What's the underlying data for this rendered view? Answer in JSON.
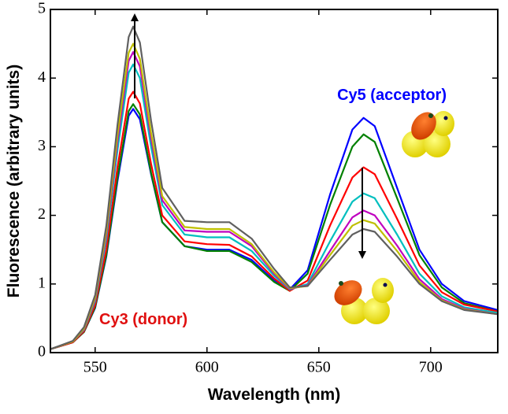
{
  "chart_data": {
    "type": "line",
    "xlabel": "Wavelength (nm)",
    "ylabel": "Fluorescence (arbitrary units)",
    "annotations": [
      {
        "text": "Cy5 (acceptor)",
        "color": "#0000ff"
      },
      {
        "text": "Cy3 (donor)",
        "color": "#e01010"
      }
    ],
    "xlim": [
      530,
      730
    ],
    "xticks": [
      550,
      600,
      650,
      700
    ],
    "ylim": [
      0,
      5
    ],
    "yticks": [
      0,
      1,
      2,
      3,
      4,
      5
    ],
    "x": [
      530,
      540,
      545,
      550,
      555,
      560,
      565,
      567,
      570,
      575,
      580,
      590,
      600,
      610,
      620,
      630,
      637,
      645,
      655,
      665,
      670,
      675,
      685,
      695,
      705,
      715,
      730
    ],
    "series": [
      {
        "color": "#0000ff",
        "values": [
          0.05,
          0.15,
          0.3,
          0.65,
          1.4,
          2.5,
          3.45,
          3.55,
          3.4,
          2.6,
          1.9,
          1.55,
          1.5,
          1.5,
          1.35,
          1.05,
          0.92,
          1.2,
          2.3,
          3.25,
          3.42,
          3.3,
          2.4,
          1.5,
          1.0,
          0.75,
          0.62
        ]
      },
      {
        "color": "#008000",
        "values": [
          0.05,
          0.15,
          0.3,
          0.66,
          1.42,
          2.55,
          3.52,
          3.62,
          3.47,
          2.62,
          1.9,
          1.55,
          1.48,
          1.48,
          1.32,
          1.03,
          0.9,
          1.15,
          2.15,
          3.0,
          3.18,
          3.07,
          2.25,
          1.42,
          0.95,
          0.72,
          0.6
        ]
      },
      {
        "color": "#ff0000",
        "values": [
          0.05,
          0.15,
          0.31,
          0.69,
          1.5,
          2.7,
          3.7,
          3.8,
          3.63,
          2.75,
          2.0,
          1.62,
          1.58,
          1.57,
          1.4,
          1.08,
          0.9,
          1.05,
          1.85,
          2.55,
          2.7,
          2.6,
          1.95,
          1.27,
          0.88,
          0.7,
          0.6
        ]
      },
      {
        "color": "#00bfbf",
        "values": [
          0.05,
          0.16,
          0.33,
          0.75,
          1.65,
          2.95,
          4.08,
          4.2,
          4.0,
          3.0,
          2.15,
          1.72,
          1.68,
          1.68,
          1.48,
          1.12,
          0.92,
          1.0,
          1.62,
          2.2,
          2.32,
          2.25,
          1.72,
          1.15,
          0.82,
          0.66,
          0.58
        ]
      },
      {
        "color": "#bf00bf",
        "values": [
          0.05,
          0.16,
          0.34,
          0.78,
          1.72,
          3.08,
          4.25,
          4.38,
          4.17,
          3.12,
          2.22,
          1.78,
          1.76,
          1.76,
          1.55,
          1.15,
          0.93,
          0.98,
          1.48,
          1.97,
          2.07,
          2.0,
          1.56,
          1.07,
          0.78,
          0.64,
          0.56
        ]
      },
      {
        "color": "#bfbf00",
        "values": [
          0.05,
          0.16,
          0.35,
          0.8,
          1.77,
          3.17,
          4.37,
          4.5,
          4.28,
          3.2,
          2.28,
          1.83,
          1.8,
          1.8,
          1.58,
          1.17,
          0.94,
          0.97,
          1.42,
          1.85,
          1.93,
          1.88,
          1.48,
          1.03,
          0.76,
          0.63,
          0.56
        ]
      },
      {
        "color": "#606060",
        "values": [
          0.05,
          0.17,
          0.37,
          0.84,
          1.85,
          3.32,
          4.6,
          4.75,
          4.52,
          3.38,
          2.4,
          1.92,
          1.9,
          1.9,
          1.66,
          1.22,
          0.95,
          0.97,
          1.35,
          1.72,
          1.8,
          1.76,
          1.4,
          1.0,
          0.75,
          0.62,
          0.56
        ]
      }
    ]
  }
}
